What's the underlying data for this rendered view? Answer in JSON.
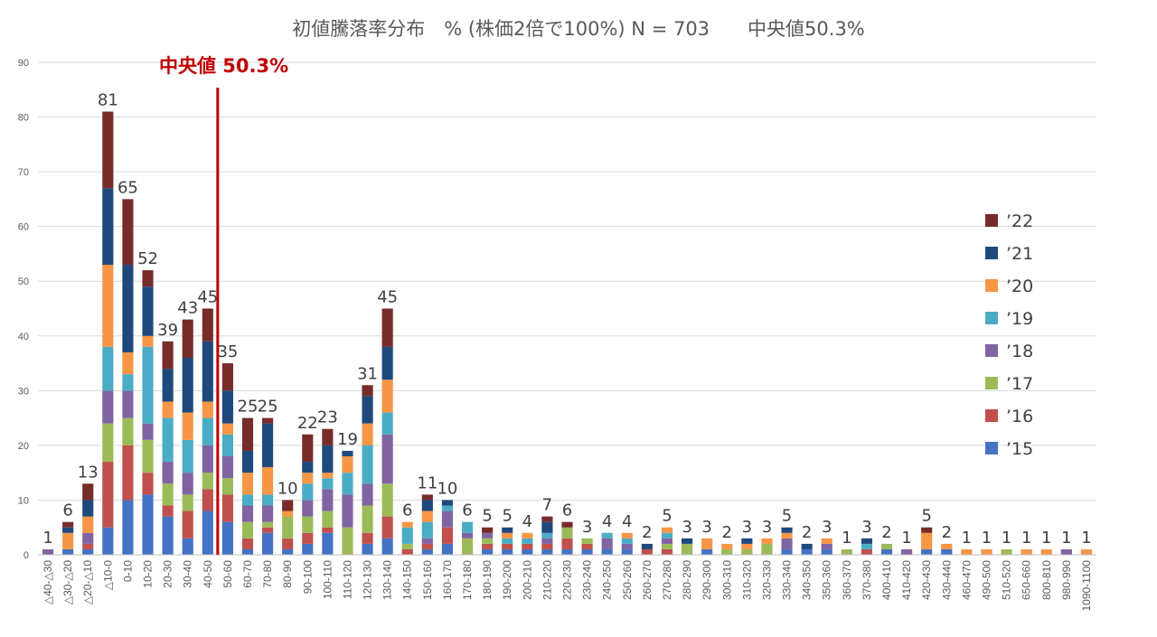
{
  "chart_data": {
    "type": "bar",
    "stacked": true,
    "title": "初値騰落率分布　% (株価2倍で100%) N = 703　　中央値50.3%",
    "median_label": "中央値 50.3%",
    "median_position_category": "50-60",
    "ylim": [
      0,
      90
    ],
    "yticks": [
      0,
      10,
      20,
      30,
      40,
      50,
      60,
      70,
      80,
      90
    ],
    "grid": true,
    "legend_position": "right",
    "categories": [
      "△40-△30",
      "△30-△20",
      "△20-△10",
      "△10-0",
      "0-10",
      "10-20",
      "20-30",
      "30-40",
      "40-50",
      "50-60",
      "60-70",
      "70-80",
      "80-90",
      "90-100",
      "100-110",
      "110-120",
      "120-130",
      "130-140",
      "140-150",
      "150-160",
      "160-170",
      "170-180",
      "180-190",
      "190-200",
      "200-210",
      "210-220",
      "220-230",
      "230-240",
      "240-250",
      "250-260",
      "260-270",
      "270-280",
      "280-290",
      "290-300",
      "300-310",
      "310-320",
      "320-330",
      "330-340",
      "340-350",
      "350-360",
      "360-370",
      "370-380",
      "400-410",
      "410-420",
      "420-430",
      "430-440",
      "460-470",
      "490-500",
      "510-520",
      "650-660",
      "800-810",
      "980-990",
      "1090-1100"
    ],
    "totals": [
      1,
      6,
      13,
      81,
      65,
      52,
      39,
      43,
      45,
      35,
      25,
      25,
      10,
      22,
      23,
      19,
      31,
      45,
      6,
      11,
      10,
      6,
      5,
      5,
      4,
      7,
      6,
      3,
      4,
      4,
      2,
      5,
      3,
      3,
      2,
      3,
      3,
      5,
      2,
      3,
      1,
      3,
      2,
      1,
      5,
      2,
      1,
      1,
      1,
      1,
      1,
      1,
      1
    ],
    "series": [
      {
        "name": "’15",
        "color": "#4472c4",
        "values": [
          0,
          1,
          1,
          5,
          10,
          11,
          7,
          3,
          8,
          6,
          1,
          4,
          1,
          2,
          4,
          0,
          2,
          3,
          0,
          1,
          2,
          0,
          1,
          1,
          1,
          1,
          1,
          1,
          1,
          1,
          0,
          0,
          0,
          1,
          0,
          0,
          0,
          1,
          1,
          1,
          0,
          0,
          1,
          0,
          1,
          1,
          0,
          0,
          0,
          0,
          0,
          0,
          0
        ]
      },
      {
        "name": "’16",
        "color": "#c0504d",
        "values": [
          0,
          0,
          1,
          12,
          10,
          4,
          2,
          5,
          4,
          5,
          2,
          1,
          2,
          2,
          1,
          0,
          2,
          4,
          1,
          1,
          3,
          0,
          1,
          1,
          1,
          1,
          2,
          1,
          0,
          0,
          1,
          1,
          0,
          0,
          0,
          0,
          0,
          0,
          0,
          0,
          0,
          1,
          0,
          0,
          0,
          0,
          0,
          0,
          0,
          0,
          0,
          0,
          0
        ]
      },
      {
        "name": "’17",
        "color": "#9bbb59",
        "values": [
          0,
          0,
          0,
          7,
          5,
          6,
          4,
          3,
          3,
          3,
          3,
          1,
          4,
          3,
          3,
          5,
          5,
          6,
          1,
          0,
          0,
          3,
          1,
          0,
          0,
          0,
          2,
          1,
          0,
          0,
          0,
          1,
          2,
          0,
          1,
          1,
          2,
          0,
          0,
          0,
          1,
          0,
          1,
          0,
          0,
          0,
          0,
          0,
          1,
          0,
          0,
          0,
          0
        ]
      },
      {
        "name": "’18",
        "color": "#8064a2",
        "values": [
          1,
          0,
          2,
          6,
          5,
          3,
          4,
          4,
          5,
          4,
          3,
          3,
          0,
          3,
          4,
          6,
          4,
          9,
          0,
          1,
          3,
          1,
          1,
          0,
          0,
          1,
          0,
          0,
          2,
          1,
          0,
          1,
          0,
          0,
          0,
          0,
          0,
          2,
          0,
          1,
          0,
          0,
          0,
          1,
          0,
          0,
          0,
          0,
          0,
          0,
          0,
          1,
          0
        ]
      },
      {
        "name": "’19",
        "color": "#4bacc6",
        "values": [
          0,
          0,
          0,
          8,
          3,
          14,
          8,
          6,
          5,
          4,
          2,
          2,
          0,
          3,
          2,
          4,
          7,
          4,
          3,
          3,
          1,
          2,
          0,
          1,
          1,
          1,
          0,
          0,
          1,
          1,
          0,
          1,
          0,
          0,
          0,
          0,
          0,
          0,
          0,
          0,
          0,
          1,
          0,
          0,
          0,
          0,
          0,
          0,
          0,
          0,
          0,
          0,
          0
        ]
      },
      {
        "name": "’20",
        "color": "#f79646",
        "values": [
          0,
          3,
          3,
          15,
          4,
          2,
          3,
          5,
          3,
          2,
          4,
          5,
          1,
          2,
          1,
          3,
          4,
          6,
          1,
          2,
          0,
          0,
          0,
          1,
          1,
          0,
          0,
          0,
          0,
          1,
          0,
          1,
          0,
          2,
          1,
          1,
          1,
          1,
          0,
          1,
          0,
          0,
          0,
          0,
          3,
          1,
          1,
          1,
          0,
          1,
          1,
          0,
          1
        ]
      },
      {
        "name": "’21",
        "color": "#1f497d",
        "values": [
          0,
          1,
          3,
          14,
          16,
          9,
          6,
          10,
          11,
          6,
          4,
          8,
          0,
          2,
          5,
          1,
          5,
          6,
          0,
          2,
          1,
          0,
          0,
          1,
          0,
          2,
          0,
          0,
          0,
          0,
          1,
          0,
          1,
          0,
          0,
          1,
          0,
          1,
          1,
          0,
          0,
          1,
          0,
          0,
          0,
          0,
          0,
          0,
          0,
          0,
          0,
          0,
          0
        ]
      },
      {
        "name": "’22",
        "color": "#772c2a",
        "values": [
          0,
          1,
          3,
          14,
          12,
          3,
          5,
          7,
          6,
          5,
          6,
          1,
          2,
          5,
          3,
          0,
          2,
          7,
          0,
          1,
          0,
          0,
          1,
          0,
          0,
          1,
          1,
          0,
          0,
          0,
          0,
          0,
          0,
          0,
          0,
          0,
          0,
          0,
          0,
          0,
          0,
          0,
          0,
          0,
          1,
          0,
          0,
          0,
          0,
          0,
          0,
          0,
          0
        ]
      }
    ]
  }
}
